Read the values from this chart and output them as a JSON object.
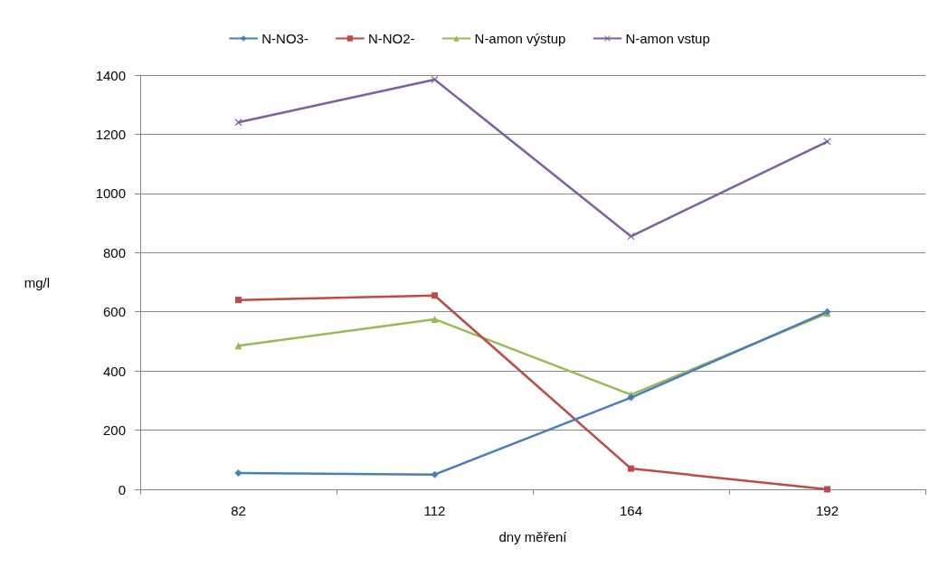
{
  "chart_data": {
    "type": "line",
    "xlabel": "dny měření",
    "ylabel": "mg/l",
    "categories": [
      "82",
      "112",
      "164",
      "192"
    ],
    "series": [
      {
        "name": "N-NO3-",
        "color": "#4a7ebb",
        "marker": "diamond",
        "values": [
          55,
          50,
          310,
          600
        ]
      },
      {
        "name": "N-NO2-",
        "color": "#be4b48",
        "marker": "square",
        "values": [
          640,
          655,
          70,
          0
        ]
      },
      {
        "name": "N-amon výstup",
        "color": "#98b954",
        "marker": "triangle",
        "values": [
          485,
          575,
          320,
          595
        ]
      },
      {
        "name": "N-amon vstup",
        "color": "#7d60a0",
        "marker": "cross",
        "values": [
          1240,
          1385,
          855,
          1175
        ]
      }
    ],
    "ylim": [
      0,
      1400
    ],
    "yticks": [
      0,
      200,
      400,
      600,
      800,
      1000,
      1200,
      1400
    ],
    "grid": "y",
    "legend": "top"
  }
}
